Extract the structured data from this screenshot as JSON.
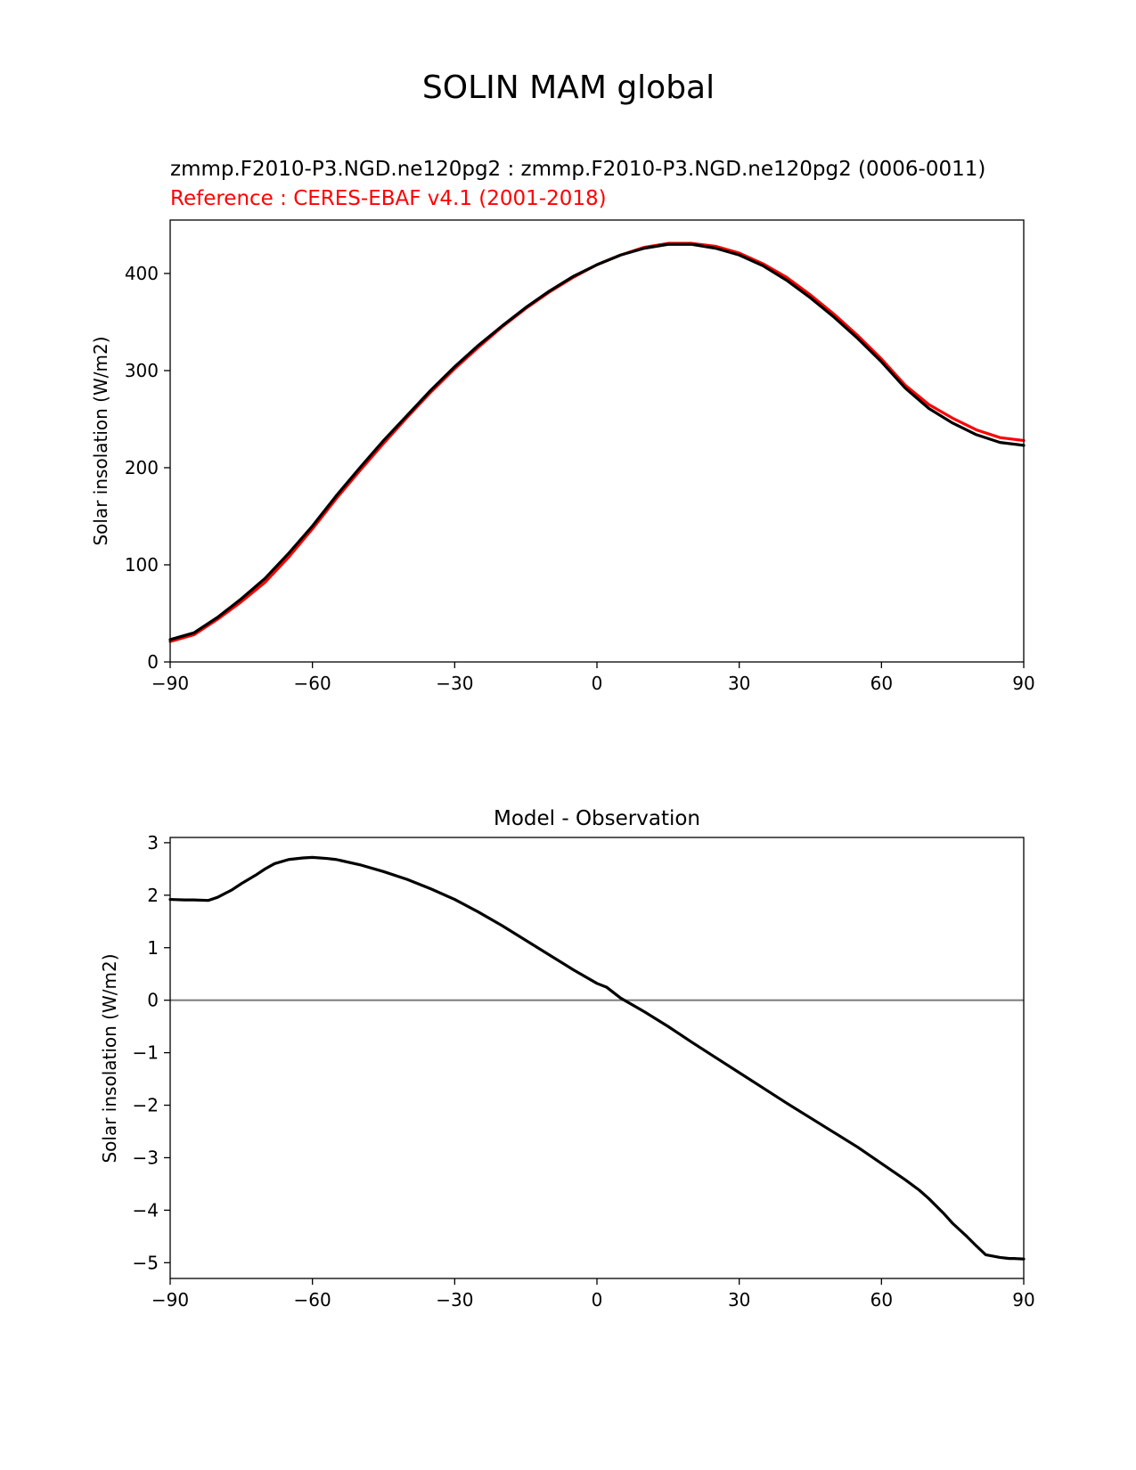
{
  "figure": {
    "suptitle": "SOLIN MAM global"
  },
  "chart_data": [
    {
      "type": "line",
      "title_line1": "zmmp.F2010-P3.NGD.ne120pg2 : zmmp.F2010-P3.NGD.ne120pg2 (0006-0011)",
      "title_line2": "Reference : CERES-EBAF v4.1 (2001-2018)",
      "xlabel": "",
      "ylabel": "Solar insolation (W/m2)",
      "xlim": [
        -90,
        90
      ],
      "ylim": [
        0,
        455
      ],
      "xticks": [
        -90,
        -60,
        -30,
        0,
        30,
        60,
        90
      ],
      "xtick_labels": [
        "−90",
        "−60",
        "−30",
        "0",
        "30",
        "60",
        "90"
      ],
      "yticks": [
        0,
        100,
        200,
        300,
        400
      ],
      "ytick_labels": [
        "0",
        "100",
        "200",
        "300",
        "400"
      ],
      "grid": false,
      "series": [
        {
          "color": "#ff0000",
          "x": [
            -90,
            -85,
            -80,
            -75,
            -70,
            -65,
            -60,
            -55,
            -50,
            -45,
            -40,
            -35,
            -30,
            -25,
            -20,
            -15,
            -10,
            -5,
            0,
            5,
            10,
            15,
            20,
            25,
            30,
            35,
            40,
            45,
            50,
            55,
            60,
            65,
            70,
            75,
            80,
            85,
            90
          ],
          "y": [
            21,
            28,
            44,
            62,
            82,
            108,
            137,
            168,
            197,
            225,
            252,
            278,
            302,
            324,
            345,
            364,
            381,
            396,
            409,
            419,
            427,
            431,
            431,
            428,
            421,
            410,
            396,
            378,
            358,
            336,
            312,
            285,
            265,
            251,
            239,
            231,
            228
          ]
        },
        {
          "color": "#000000",
          "x": [
            -90,
            -85,
            -80,
            -75,
            -70,
            -65,
            -60,
            -55,
            -50,
            -45,
            -40,
            -35,
            -30,
            -25,
            -20,
            -15,
            -10,
            -5,
            0,
            5,
            10,
            15,
            20,
            25,
            30,
            35,
            40,
            45,
            50,
            55,
            60,
            65,
            70,
            75,
            80,
            85,
            90
          ],
          "y": [
            23,
            30,
            46,
            65,
            86,
            112,
            140,
            171,
            200,
            228,
            254,
            280,
            304,
            326,
            346,
            365,
            382,
            397,
            409,
            419,
            426,
            430,
            430,
            426,
            419,
            408,
            393,
            375,
            355,
            333,
            309,
            282,
            261,
            246,
            234,
            226,
            223
          ]
        }
      ]
    },
    {
      "type": "line",
      "title": "Model - Observation",
      "xlabel": "",
      "ylabel": "Solar insolation (W/m2)",
      "xlim": [
        -90,
        90
      ],
      "ylim": [
        -5.3,
        3.1
      ],
      "xticks": [
        -90,
        -60,
        -30,
        0,
        30,
        60,
        90
      ],
      "xtick_labels": [
        "−90",
        "−60",
        "−30",
        "0",
        "30",
        "60",
        "90"
      ],
      "yticks": [
        3,
        2,
        1,
        0,
        -1,
        -2,
        -3,
        -4,
        -5
      ],
      "ytick_labels": [
        "3",
        "2",
        "1",
        "0",
        "−1",
        "−2",
        "−3",
        "−4",
        "−5"
      ],
      "grid": false,
      "zero_line_color": "#808080",
      "series": [
        {
          "color": "#000000",
          "x": [
            -90,
            -87,
            -85,
            -82,
            -80,
            -77,
            -75,
            -72,
            -70,
            -68,
            -65,
            -62,
            -60,
            -57,
            -55,
            -50,
            -45,
            -40,
            -35,
            -30,
            -25,
            -20,
            -15,
            -10,
            -5,
            0,
            2,
            5,
            10,
            15,
            20,
            25,
            30,
            35,
            40,
            45,
            50,
            55,
            60,
            65,
            68,
            70,
            73,
            75,
            78,
            80,
            82,
            85,
            87,
            88,
            90
          ],
          "y": [
            1.92,
            1.91,
            1.91,
            1.9,
            1.96,
            2.1,
            2.22,
            2.38,
            2.5,
            2.6,
            2.68,
            2.71,
            2.72,
            2.7,
            2.68,
            2.58,
            2.45,
            2.3,
            2.12,
            1.92,
            1.68,
            1.42,
            1.14,
            0.86,
            0.58,
            0.32,
            0.25,
            0.04,
            -0.22,
            -0.5,
            -0.8,
            -1.09,
            -1.38,
            -1.67,
            -1.96,
            -2.24,
            -2.52,
            -2.8,
            -3.11,
            -3.42,
            -3.62,
            -3.78,
            -4.05,
            -4.25,
            -4.5,
            -4.68,
            -4.85,
            -4.9,
            -4.92,
            -4.92,
            -4.93
          ]
        }
      ]
    }
  ]
}
